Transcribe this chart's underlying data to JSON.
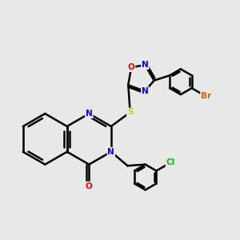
{
  "bg_color": "#e8e8e8",
  "bond_color": "#000000",
  "bond_lw": 1.8,
  "atom_colors": {
    "N": "#0000ff",
    "O": "#ff0000",
    "S": "#cccc00",
    "Cl": "#00bb00",
    "Br": "#cc6600",
    "C": "#000000"
  },
  "font_size": 7.5,
  "fig_size": [
    3.0,
    3.0
  ],
  "dpi": 100
}
